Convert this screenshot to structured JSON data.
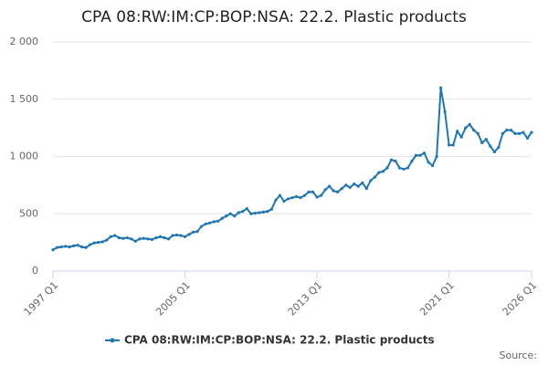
{
  "chart_data": {
    "type": "line",
    "title": "CPA 08:RW:IM:CP:BOP:NSA: 22.2. Plastic products",
    "source": "Source:",
    "categories": [
      "1997 Q1",
      null,
      null,
      null,
      null,
      null,
      null,
      null,
      null,
      null,
      null,
      null,
      null,
      null,
      null,
      null,
      null,
      null,
      null,
      null,
      null,
      null,
      null,
      null,
      null,
      null,
      null,
      null,
      null,
      null,
      null,
      null,
      "2005 Q1",
      null,
      null,
      null,
      null,
      null,
      null,
      null,
      null,
      null,
      null,
      null,
      null,
      null,
      null,
      null,
      null,
      null,
      null,
      null,
      null,
      null,
      null,
      null,
      null,
      null,
      null,
      null,
      null,
      null,
      null,
      null,
      "2013 Q1",
      null,
      null,
      null,
      null,
      null,
      null,
      null,
      null,
      null,
      null,
      null,
      null,
      null,
      null,
      null,
      null,
      null,
      null,
      null,
      null,
      null,
      null,
      null,
      null,
      null,
      null,
      null,
      null,
      null,
      null,
      null,
      "2021 Q1",
      null,
      null,
      null,
      null,
      null,
      null,
      null,
      null,
      null,
      null,
      null,
      null,
      null,
      null,
      null,
      null,
      null,
      null,
      null,
      "2026 Q1"
    ],
    "series": [
      {
        "name": "CPA 08:RW:IM:CP:BOP:NSA: 22.2. Plastic products",
        "color": "#1f77b4",
        "values": [
          185,
          205,
          210,
          215,
          210,
          220,
          225,
          210,
          205,
          230,
          245,
          250,
          255,
          270,
          300,
          310,
          290,
          285,
          290,
          280,
          260,
          280,
          285,
          280,
          275,
          290,
          300,
          290,
          280,
          310,
          315,
          310,
          300,
          320,
          340,
          345,
          390,
          410,
          420,
          430,
          435,
          460,
          480,
          500,
          480,
          510,
          520,
          545,
          500,
          505,
          510,
          515,
          520,
          540,
          620,
          660,
          610,
          630,
          640,
          650,
          640,
          660,
          690,
          690,
          645,
          660,
          710,
          740,
          700,
          690,
          720,
          750,
          730,
          760,
          740,
          770,
          720,
          790,
          820,
          860,
          870,
          900,
          970,
          960,
          900,
          890,
          900,
          960,
          1010,
          1010,
          1030,
          950,
          920,
          1000,
          1600,
          1390,
          1100,
          1100,
          1220,
          1170,
          1250,
          1280,
          1230,
          1200,
          1120,
          1150,
          1090,
          1040,
          1080,
          1200,
          1230,
          1230,
          1200,
          1200,
          1210,
          1160,
          1210
        ]
      }
    ],
    "ylim": [
      0,
      2000
    ],
    "yticks": [
      0,
      500,
      {
        "value": 1000,
        "label": "1 000"
      },
      {
        "value": 1500,
        "label": "1 500"
      },
      {
        "value": 2000,
        "label": "2 000"
      }
    ],
    "grid": true
  }
}
